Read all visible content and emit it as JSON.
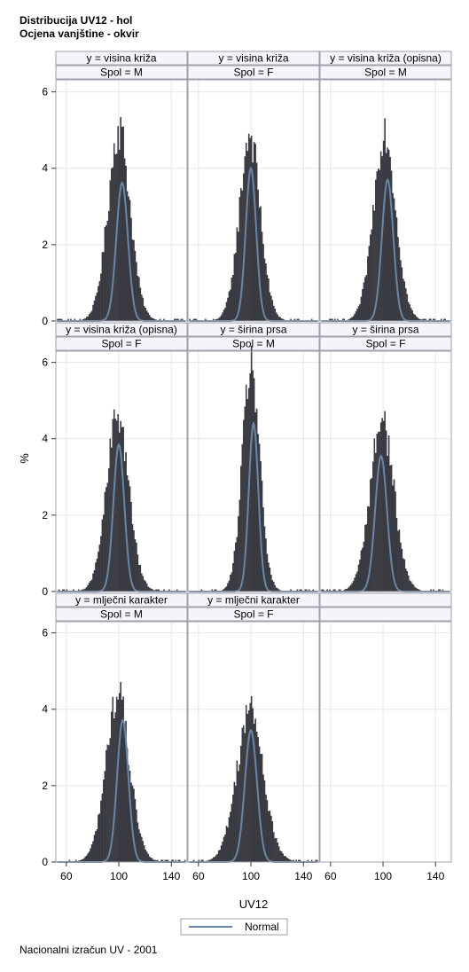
{
  "titles": [
    "Distribucija UV12 - hol",
    "Ocjena vanjštine - okvir"
  ],
  "footnote": "Nacionalni izračun UV - 2001",
  "chart_data": {
    "type": "bar",
    "subtype": "histogram-panel-grid",
    "xlabel": "UV12",
    "ylabel": "%",
    "xlim": [
      52,
      152
    ],
    "ylim": [
      0,
      6.2
    ],
    "x_ticks": [
      60,
      100,
      140
    ],
    "y_ticks": [
      0,
      2,
      4,
      6
    ],
    "grid": true,
    "legend": {
      "position": "bottom-center",
      "entries": [
        "Normal"
      ]
    },
    "colors": {
      "bar": "#3a3d45",
      "curve": "#6a86a6",
      "header_bg": "#f4f4fb",
      "frame": "#a0a0a8"
    },
    "panels": [
      {
        "header1": "y = visina križa",
        "header2": "Spol = M",
        "peak": 5.05,
        "center": 100,
        "spread": 8.0,
        "normal_mean": 102.5,
        "normal_peak": 3.62
      },
      {
        "header1": "y = visina križa",
        "header2": "Spol = F",
        "peak": 4.9,
        "center": 99,
        "spread": 7.5,
        "normal_mean": 100,
        "normal_peak": 4.0
      },
      {
        "header1": "y = visina križa (opisna)",
        "header2": "Spol = M",
        "peak": 5.0,
        "center": 101,
        "spread": 8.0,
        "normal_mean": 103.5,
        "normal_peak": 3.7
      },
      {
        "header1": "y = visina križa (opisna)",
        "header2": "Spol = F",
        "peak": 4.65,
        "center": 99,
        "spread": 8.0,
        "normal_mean": 100,
        "normal_peak": 3.85
      },
      {
        "header1": "y = širina prsa",
        "header2": "Spol = M",
        "peak": 6.0,
        "center": 100,
        "spread": 6.2,
        "normal_mean": 102,
        "normal_peak": 4.4
      },
      {
        "header1": "y = širina prsa",
        "header2": "Spol = F",
        "peak": 4.55,
        "center": 99,
        "spread": 8.5,
        "normal_mean": 98.5,
        "normal_peak": 3.55
      },
      {
        "header1": "y = mlječni karakter",
        "header2": "Spol = M",
        "peak": 4.4,
        "center": 99,
        "spread": 8.5,
        "normal_mean": 103,
        "normal_peak": 3.72
      },
      {
        "header1": "y = mlječni karakter",
        "header2": "Spol = F",
        "peak": 4.0,
        "center": 99,
        "spread": 9.5,
        "normal_mean": 100,
        "normal_peak": 3.45
      }
    ]
  }
}
